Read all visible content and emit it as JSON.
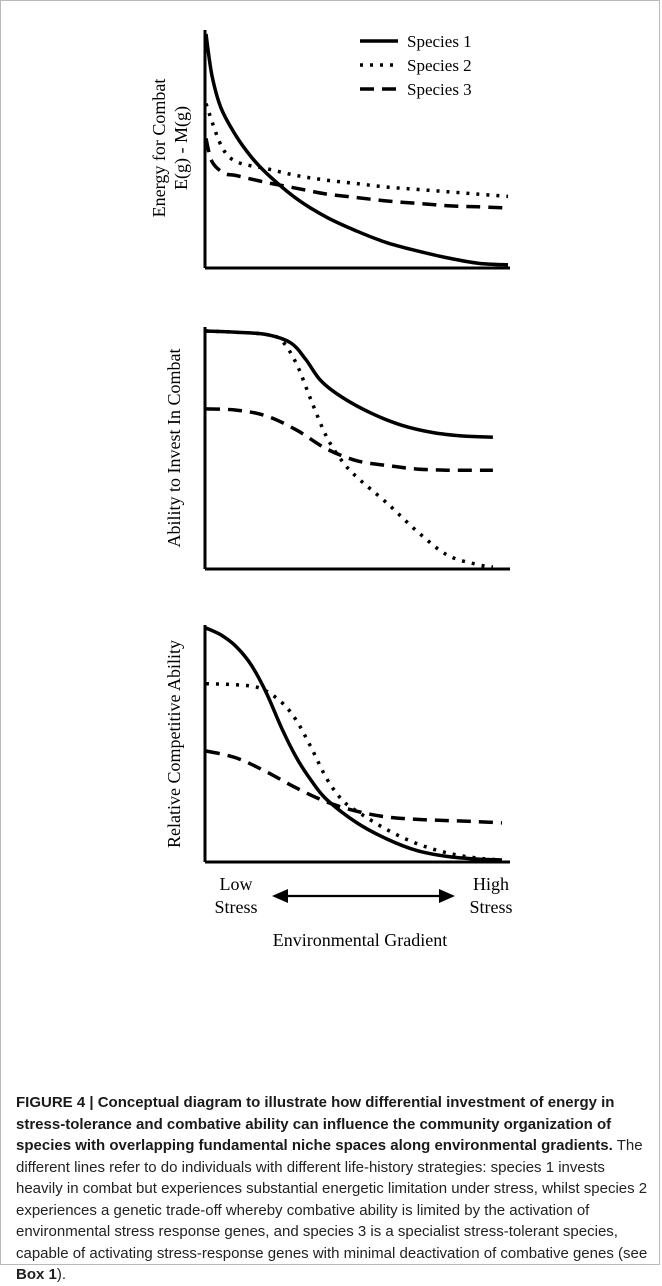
{
  "chart_data": [
    {
      "type": "line",
      "ylabel": [
        "Energy for Combat",
        "E(g) - M(g)"
      ],
      "x": [
        0,
        1
      ],
      "ylim": [
        0,
        1
      ],
      "legend_position": "top-right",
      "series": [
        {
          "name": "Species 1",
          "style": "solid",
          "points": [
            [
              0.0,
              1.0
            ],
            [
              0.02,
              0.82
            ],
            [
              0.05,
              0.68
            ],
            [
              0.1,
              0.56
            ],
            [
              0.15,
              0.47
            ],
            [
              0.2,
              0.4
            ],
            [
              0.3,
              0.29
            ],
            [
              0.4,
              0.21
            ],
            [
              0.5,
              0.15
            ],
            [
              0.6,
              0.1
            ],
            [
              0.7,
              0.065
            ],
            [
              0.8,
              0.035
            ],
            [
              0.9,
              0.012
            ],
            [
              1.0,
              0.005
            ]
          ]
        },
        {
          "name": "Species 2",
          "style": "dotted",
          "points": [
            [
              0.0,
              0.7
            ],
            [
              0.05,
              0.52
            ],
            [
              0.1,
              0.45
            ],
            [
              0.2,
              0.42
            ],
            [
              0.3,
              0.39
            ],
            [
              0.4,
              0.37
            ],
            [
              0.5,
              0.355
            ],
            [
              0.6,
              0.34
            ],
            [
              0.7,
              0.33
            ],
            [
              0.8,
              0.32
            ],
            [
              0.9,
              0.31
            ],
            [
              1.0,
              0.3
            ]
          ]
        },
        {
          "name": "Species 3",
          "style": "dashed",
          "points": [
            [
              0.0,
              0.55
            ],
            [
              0.02,
              0.45
            ],
            [
              0.06,
              0.4
            ],
            [
              0.1,
              0.39
            ],
            [
              0.2,
              0.36
            ],
            [
              0.3,
              0.335
            ],
            [
              0.4,
              0.31
            ],
            [
              0.5,
              0.295
            ],
            [
              0.6,
              0.28
            ],
            [
              0.7,
              0.27
            ],
            [
              0.8,
              0.26
            ],
            [
              0.9,
              0.255
            ],
            [
              1.0,
              0.25
            ]
          ]
        }
      ]
    },
    {
      "type": "line",
      "ylabel": [
        "Ability to Invest In Combat"
      ],
      "x": [
        0,
        1
      ],
      "ylim": [
        0,
        1
      ],
      "series": [
        {
          "name": "Species 1",
          "style": "solid",
          "points": [
            [
              0.0,
              1.0
            ],
            [
              0.1,
              0.995
            ],
            [
              0.2,
              0.985
            ],
            [
              0.28,
              0.95
            ],
            [
              0.33,
              0.88
            ],
            [
              0.38,
              0.79
            ],
            [
              0.45,
              0.72
            ],
            [
              0.55,
              0.65
            ],
            [
              0.65,
              0.6
            ],
            [
              0.75,
              0.57
            ],
            [
              0.85,
              0.555
            ],
            [
              0.95,
              0.55
            ]
          ]
        },
        {
          "name": "Species 2",
          "style": "dotted",
          "points": [
            [
              0.0,
              1.0
            ],
            [
              0.1,
              0.995
            ],
            [
              0.2,
              0.985
            ],
            [
              0.25,
              0.96
            ],
            [
              0.3,
              0.86
            ],
            [
              0.35,
              0.7
            ],
            [
              0.4,
              0.55
            ],
            [
              0.45,
              0.45
            ],
            [
              0.5,
              0.38
            ],
            [
              0.6,
              0.27
            ],
            [
              0.7,
              0.15
            ],
            [
              0.8,
              0.05
            ],
            [
              0.9,
              0.01
            ],
            [
              0.95,
              0.0
            ]
          ]
        },
        {
          "name": "Species 3",
          "style": "dashed",
          "points": [
            [
              0.0,
              0.67
            ],
            [
              0.1,
              0.665
            ],
            [
              0.2,
              0.64
            ],
            [
              0.3,
              0.58
            ],
            [
              0.4,
              0.5
            ],
            [
              0.5,
              0.45
            ],
            [
              0.6,
              0.43
            ],
            [
              0.7,
              0.415
            ],
            [
              0.8,
              0.41
            ],
            [
              0.9,
              0.41
            ],
            [
              0.95,
              0.41
            ]
          ]
        }
      ]
    },
    {
      "type": "line",
      "ylabel": [
        "Relative Competitive Ability"
      ],
      "xlabel": "Environmental Gradient",
      "x_end_labels": {
        "low": [
          "Low",
          "Stress"
        ],
        "high": [
          "High",
          "Stress"
        ]
      },
      "x": [
        0,
        1
      ],
      "ylim": [
        0,
        1
      ],
      "series": [
        {
          "name": "Species 1",
          "style": "solid",
          "points": [
            [
              0.0,
              1.0
            ],
            [
              0.05,
              0.97
            ],
            [
              0.1,
              0.92
            ],
            [
              0.15,
              0.84
            ],
            [
              0.2,
              0.72
            ],
            [
              0.25,
              0.57
            ],
            [
              0.3,
              0.44
            ],
            [
              0.35,
              0.34
            ],
            [
              0.4,
              0.26
            ],
            [
              0.5,
              0.16
            ],
            [
              0.6,
              0.09
            ],
            [
              0.7,
              0.04
            ],
            [
              0.8,
              0.015
            ],
            [
              0.9,
              0.004
            ],
            [
              0.98,
              0.0
            ]
          ]
        },
        {
          "name": "Species 2",
          "style": "dotted",
          "points": [
            [
              0.0,
              0.76
            ],
            [
              0.1,
              0.755
            ],
            [
              0.18,
              0.74
            ],
            [
              0.25,
              0.68
            ],
            [
              0.3,
              0.6
            ],
            [
              0.35,
              0.48
            ],
            [
              0.4,
              0.35
            ],
            [
              0.45,
              0.26
            ],
            [
              0.5,
              0.21
            ],
            [
              0.6,
              0.13
            ],
            [
              0.7,
              0.07
            ],
            [
              0.8,
              0.03
            ],
            [
              0.9,
              0.008
            ],
            [
              0.98,
              0.0
            ]
          ]
        },
        {
          "name": "Species 3",
          "style": "dashed",
          "points": [
            [
              0.0,
              0.47
            ],
            [
              0.1,
              0.44
            ],
            [
              0.2,
              0.38
            ],
            [
              0.3,
              0.31
            ],
            [
              0.4,
              0.25
            ],
            [
              0.5,
              0.21
            ],
            [
              0.6,
              0.185
            ],
            [
              0.7,
              0.175
            ],
            [
              0.8,
              0.17
            ],
            [
              0.9,
              0.165
            ],
            [
              0.98,
              0.16
            ]
          ]
        }
      ]
    }
  ],
  "caption": {
    "lead": "FIGURE 4 | Conceptual diagram to illustrate how differential investment of energy in stress-tolerance and combative ability can influence the community organization of species with overlapping fundamental niche spaces along environmental gradients.",
    "body": " The different lines refer to do individuals with different life-history strategies: species 1 invests heavily in combat but experiences substantial energetic limitation under stress, whilst species 2 experiences a genetic trade-off whereby combative ability is limited by the activation of environmental stress response genes, and species 3 is a specialist stress-tolerant species, capable of activating stress-response genes with minimal deactivation of combative genes (see ",
    "box_ref": "Box 1",
    "tail": ")."
  }
}
